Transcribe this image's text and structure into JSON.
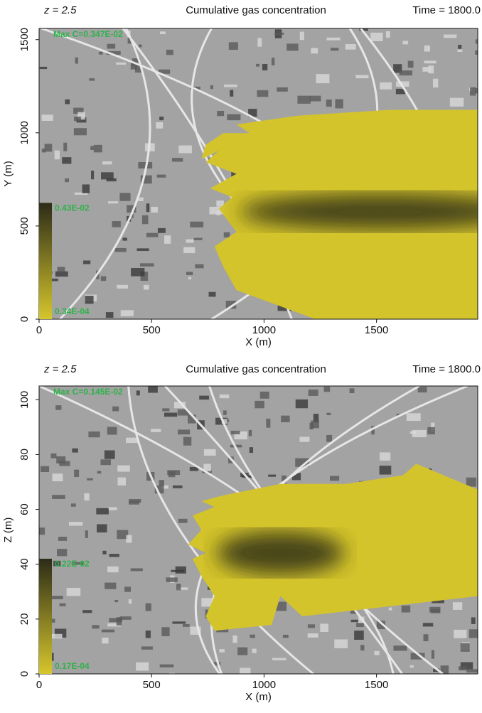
{
  "chart_data": [
    {
      "type": "contour",
      "title": "Cumulative gas concentration",
      "left_note": "z = 2.5",
      "right_note": "Time = 1800.0",
      "xlabel": "X (m)",
      "ylabel": "Y (m)",
      "max_label": "Max C=0.347E-02",
      "colorbar_labels": [
        "0.43E-02",
        "0.34E-04"
      ],
      "xlim": [
        0,
        1950
      ],
      "xticks": [
        0,
        500,
        1000,
        1500
      ],
      "ylim": [
        0,
        1560
      ],
      "yticks": [
        0,
        500,
        1000,
        1500
      ]
    },
    {
      "type": "contour",
      "title": "Cumulative gas concentration",
      "left_note": "z = 2.5",
      "right_note": "Time = 1800.0",
      "xlabel": "X (m)",
      "ylabel": "Z (m)",
      "max_label": "Max C=0.145E-02",
      "colorbar_labels": [
        "0.22E-02",
        "0.17E-04"
      ],
      "xlim": [
        0,
        1950
      ],
      "xticks": [
        0,
        500,
        1000,
        1500
      ],
      "ylim": [
        0,
        105
      ],
      "yticks": [
        0,
        20,
        40,
        60,
        80,
        100
      ]
    }
  ]
}
